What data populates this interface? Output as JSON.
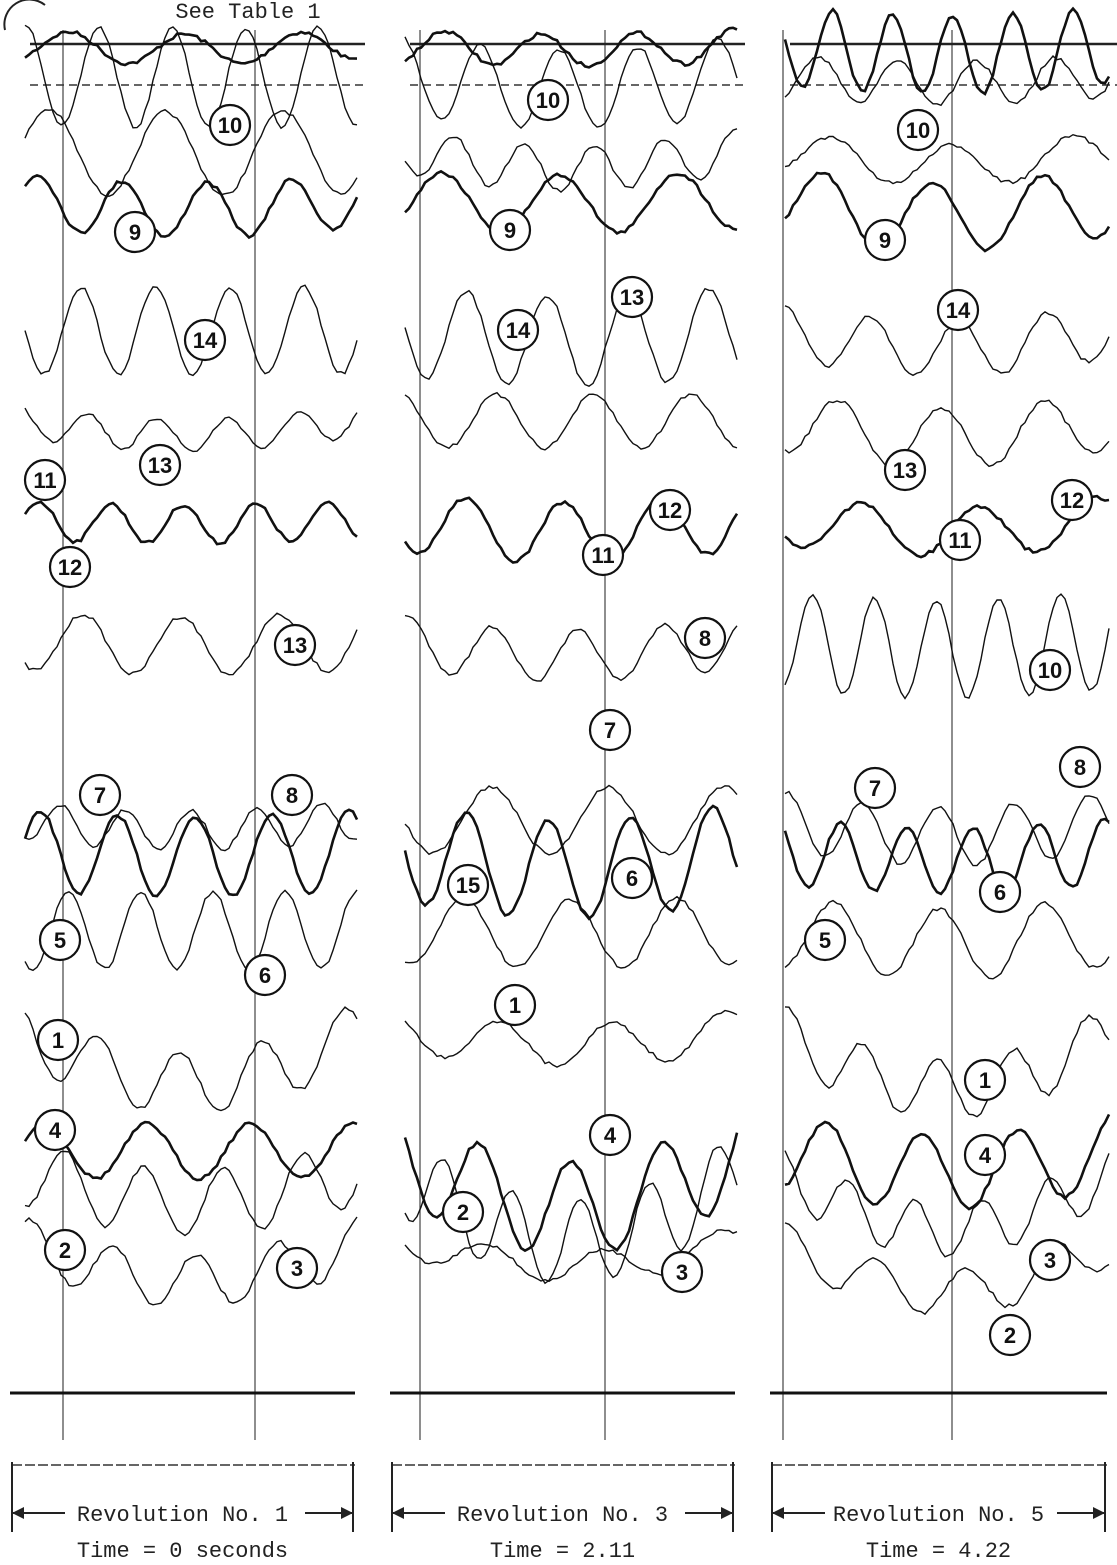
{
  "header": {
    "note": "See Table 1"
  },
  "panels": [
    {
      "title": "Revolution No. 1",
      "time": "Time = 0 seconds",
      "labels": [
        "10",
        "9",
        "14",
        "13",
        "11",
        "12",
        "13",
        "7",
        "8",
        "5",
        "6",
        "1",
        "4",
        "2",
        "3"
      ]
    },
    {
      "title": "Revolution No. 3",
      "time": "Time = 2.11",
      "labels": [
        "10",
        "9",
        "13",
        "14",
        "12",
        "11",
        "8",
        "7",
        "15",
        "6",
        "1",
        "4",
        "2",
        "3"
      ]
    },
    {
      "title": "Revolution No. 5",
      "time": "Time = 4.22",
      "labels": [
        "10",
        "9",
        "14",
        "13",
        "11",
        "12",
        "10",
        "7",
        "8",
        "6",
        "5",
        "1",
        "4",
        "3",
        "2"
      ]
    }
  ]
}
